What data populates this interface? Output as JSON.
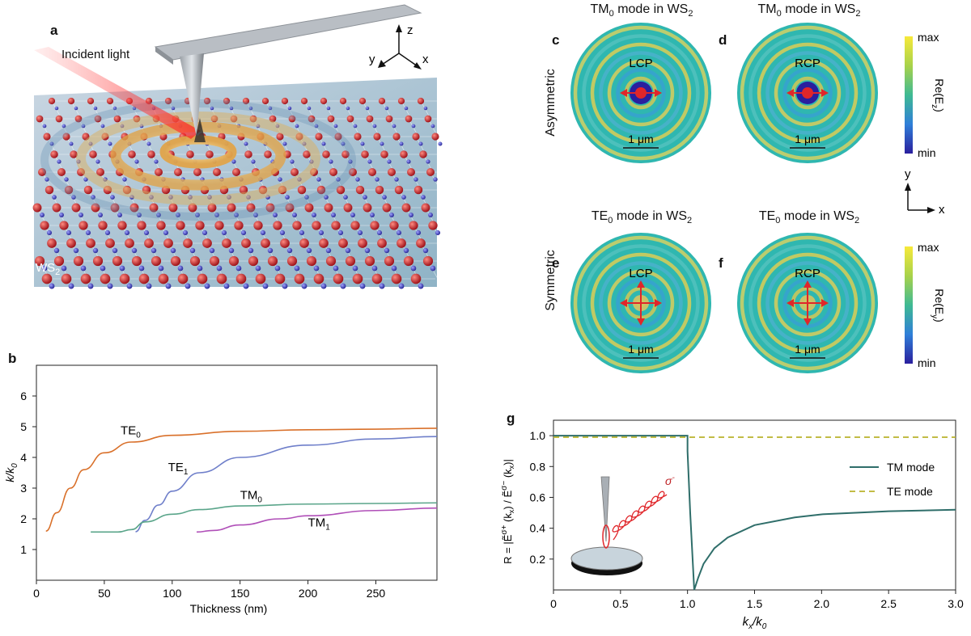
{
  "panel_a": {
    "label": "a",
    "incident_light": "Incident light",
    "material": "WS",
    "material_sub": "2",
    "axes": {
      "x": "x",
      "y": "y",
      "z": "z"
    }
  },
  "panel_b": {
    "label": "b"
  },
  "field_panels": {
    "c": {
      "label": "c",
      "title_main": "TM",
      "title_sub": "0",
      "title_rest": " mode in WS",
      "title_sub2": "2",
      "pol": "LCP",
      "scale": "1 μm"
    },
    "d": {
      "label": "d",
      "title_main": "TM",
      "title_sub": "0",
      "title_rest": " mode in WS",
      "title_sub2": "2",
      "pol": "RCP",
      "scale": "1 μm"
    },
    "e": {
      "label": "e",
      "title_main": "TE",
      "title_sub": "0",
      "title_rest": " mode in WS",
      "title_sub2": "2",
      "pol": "LCP",
      "scale": "1 μm"
    },
    "f": {
      "label": "f",
      "title_main": "TE",
      "title_sub": "0",
      "title_rest": " mode in WS",
      "title_sub2": "2",
      "pol": "RCP",
      "scale": "1 μm"
    },
    "row1_label": "Asymmetric",
    "row2_label": "Symmetric",
    "colorbar1": {
      "max": "max",
      "min": "min",
      "label": "Re(E",
      "label_sub": "z",
      "label_end": ")"
    },
    "colorbar2": {
      "max": "max",
      "min": "min",
      "label": "Re(E",
      "label_sub": "y",
      "label_end": ")"
    },
    "axes": {
      "x": "x",
      "y": "y"
    }
  },
  "panel_g": {
    "label": "g",
    "sigma": "σ",
    "sigma_sup": "-"
  },
  "colors": {
    "te0": "#d9702a",
    "te1": "#6f7fca",
    "tm0": "#5aa58a",
    "tm1": "#b04fb8",
    "tm_mode": "#2f6e6a",
    "te_mode": "#b9b32c",
    "arrow": "#e0262a"
  },
  "chart_data": [
    {
      "type": "line",
      "xlabel": "Thickness (nm)",
      "ylabel": "k/k0",
      "xlim": [
        0,
        295
      ],
      "ylim": [
        0,
        7
      ],
      "x_ticks": [
        0,
        50,
        100,
        150,
        200,
        250
      ],
      "y_ticks": [
        1,
        2,
        3,
        4,
        5,
        6
      ],
      "series": [
        {
          "name": "TE0",
          "x": [
            7,
            15,
            25,
            35,
            50,
            70,
            100,
            150,
            200,
            250,
            295
          ],
          "y": [
            1.6,
            2.2,
            3.0,
            3.6,
            4.15,
            4.5,
            4.72,
            4.85,
            4.9,
            4.92,
            4.95
          ]
        },
        {
          "name": "TE1",
          "x": [
            73,
            80,
            90,
            100,
            120,
            150,
            200,
            250,
            295
          ],
          "y": [
            1.58,
            1.95,
            2.45,
            2.9,
            3.5,
            4.0,
            4.4,
            4.6,
            4.68
          ]
        },
        {
          "name": "TM0",
          "x": [
            40,
            60,
            70,
            80,
            100,
            120,
            150,
            200,
            250,
            295
          ],
          "y": [
            1.57,
            1.57,
            1.65,
            1.9,
            2.15,
            2.3,
            2.42,
            2.48,
            2.5,
            2.52
          ]
        },
        {
          "name": "TM1",
          "x": [
            118,
            130,
            150,
            180,
            200,
            250,
            295
          ],
          "y": [
            1.57,
            1.62,
            1.8,
            2.0,
            2.1,
            2.27,
            2.35
          ]
        }
      ],
      "curve_labels": [
        {
          "main": "TE",
          "sub": "0",
          "x": 62,
          "y": 4.75
        },
        {
          "main": "TE",
          "sub": "1",
          "x": 97,
          "y": 3.55
        },
        {
          "main": "TM",
          "sub": "0",
          "x": 150,
          "y": 2.65
        },
        {
          "main": "TM",
          "sub": "1",
          "x": 200,
          "y": 1.75
        }
      ]
    },
    {
      "type": "line",
      "xlabel": "kx/k0",
      "ylabel": "R = |Ej σ+ (kx) / Ej σ− (kx)|",
      "xlim": [
        0,
        3
      ],
      "ylim": [
        0,
        1.1
      ],
      "x_ticks": [
        "0",
        "0.5",
        "1.0",
        "1.5",
        "2.0",
        "2.5",
        "3.0"
      ],
      "y_ticks": [
        "0.2",
        "0.4",
        "0.6",
        "0.8",
        "1.0"
      ],
      "legend_position": "right",
      "series": [
        {
          "name": "TM mode",
          "x": [
            0,
            1.0,
            1.0,
            1.02,
            1.05,
            1.08,
            1.12,
            1.2,
            1.3,
            1.5,
            1.8,
            2.0,
            2.5,
            3.0
          ],
          "y": [
            1.0,
            1.0,
            0.9,
            0.5,
            0.0,
            0.08,
            0.17,
            0.27,
            0.34,
            0.42,
            0.47,
            0.49,
            0.51,
            0.52
          ]
        },
        {
          "name": "TE mode",
          "x": [
            0,
            3.0
          ],
          "y": [
            0.99,
            0.99
          ],
          "dashed": true
        }
      ]
    }
  ]
}
